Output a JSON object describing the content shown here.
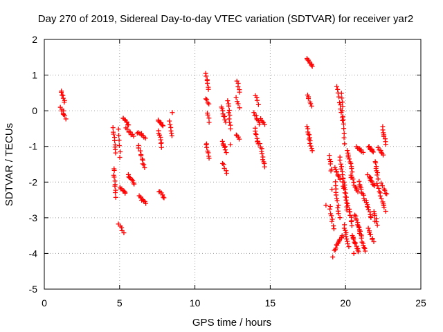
{
  "chart_data": {
    "type": "scatter",
    "title": "Day 270 of 2019, Sidereal Day-to-day VTEC variation (SDTVAR) for receiver yar2",
    "xlabel": "GPS time / hours",
    "ylabel": "SDTVAR / TECUs",
    "xlim": [
      0,
      25
    ],
    "ylim": [
      -5,
      2
    ],
    "xticks": [
      "0",
      "5",
      "10",
      "15",
      "20",
      "25"
    ],
    "yticks": [
      "2",
      "1",
      "0",
      "-1",
      "-2",
      "-3",
      "-4",
      "-5"
    ],
    "grid": true,
    "marker": "+",
    "color": "#ff0000",
    "tracks": [
      {
        "x0": 1.1,
        "y0": 0.55,
        "x1": 1.35,
        "y1": 0.25,
        "n": 7
      },
      {
        "x0": 1.1,
        "y0": 0.1,
        "x1": 1.4,
        "y1": -0.2,
        "n": 8
      },
      {
        "x0": 4.55,
        "y0": -0.5,
        "x1": 4.75,
        "y1": -1.2,
        "n": 9
      },
      {
        "x0": 4.6,
        "y0": -1.6,
        "x1": 4.75,
        "y1": -2.4,
        "n": 10
      },
      {
        "x0": 4.9,
        "y0": -0.5,
        "x1": 5.05,
        "y1": -1.3,
        "n": 6
      },
      {
        "x0": 5.0,
        "y0": -2.15,
        "x1": 5.4,
        "y1": -2.3,
        "n": 7
      },
      {
        "x0": 4.95,
        "y0": -3.2,
        "x1": 5.25,
        "y1": -3.4,
        "n": 5
      },
      {
        "x0": 5.2,
        "y0": -0.2,
        "x1": 5.6,
        "y1": -0.4,
        "n": 8
      },
      {
        "x0": 5.45,
        "y0": -0.5,
        "x1": 5.9,
        "y1": -0.7,
        "n": 8
      },
      {
        "x0": 5.55,
        "y0": -1.8,
        "x1": 5.95,
        "y1": -2.05,
        "n": 8
      },
      {
        "x0": 6.2,
        "y0": -0.6,
        "x1": 6.7,
        "y1": -0.75,
        "n": 8
      },
      {
        "x0": 6.25,
        "y0": -1.0,
        "x1": 6.65,
        "y1": -1.6,
        "n": 10
      },
      {
        "x0": 6.3,
        "y0": -2.4,
        "x1": 6.75,
        "y1": -2.6,
        "n": 8
      },
      {
        "x0": 7.55,
        "y0": -0.25,
        "x1": 7.9,
        "y1": -0.45,
        "n": 8
      },
      {
        "x0": 7.6,
        "y0": -0.55,
        "x1": 7.8,
        "y1": -1.0,
        "n": 8
      },
      {
        "x0": 7.6,
        "y0": -2.25,
        "x1": 7.95,
        "y1": -2.45,
        "n": 6
      },
      {
        "x0": 8.3,
        "y0": -0.3,
        "x1": 8.45,
        "y1": -0.7,
        "n": 6
      },
      {
        "x0": 10.75,
        "y0": 1.05,
        "x1": 10.9,
        "y1": 0.6,
        "n": 7
      },
      {
        "x0": 10.75,
        "y0": 0.35,
        "x1": 10.9,
        "y1": 0.2,
        "n": 4
      },
      {
        "x0": 10.85,
        "y0": -0.05,
        "x1": 10.95,
        "y1": -0.3,
        "n": 4
      },
      {
        "x0": 10.75,
        "y0": -0.9,
        "x1": 10.95,
        "y1": -1.35,
        "n": 7
      },
      {
        "x0": 11.75,
        "y0": 0.1,
        "x1": 12.05,
        "y1": -0.3,
        "n": 8
      },
      {
        "x0": 11.8,
        "y0": -0.85,
        "x1": 12.05,
        "y1": -1.15,
        "n": 7
      },
      {
        "x0": 11.85,
        "y0": -1.45,
        "x1": 12.1,
        "y1": -1.75,
        "n": 5
      },
      {
        "x0": 12.2,
        "y0": 0.3,
        "x1": 12.35,
        "y1": -0.5,
        "n": 10
      },
      {
        "x0": 12.8,
        "y0": 0.85,
        "x1": 12.95,
        "y1": 0.5,
        "n": 5
      },
      {
        "x0": 12.75,
        "y0": 0.35,
        "x1": 12.95,
        "y1": 0.1,
        "n": 4
      },
      {
        "x0": 12.75,
        "y0": -0.65,
        "x1": 12.95,
        "y1": -0.8,
        "n": 4
      },
      {
        "x0": 14.05,
        "y0": 0.45,
        "x1": 14.2,
        "y1": 0.2,
        "n": 4
      },
      {
        "x0": 13.95,
        "y0": -0.05,
        "x1": 14.3,
        "y1": -0.4,
        "n": 8
      },
      {
        "x0": 14.0,
        "y0": -0.5,
        "x1": 14.2,
        "y1": -0.95,
        "n": 8
      },
      {
        "x0": 14.4,
        "y0": -0.2,
        "x1": 14.6,
        "y1": -0.4,
        "n": 5
      },
      {
        "x0": 14.35,
        "y0": -0.95,
        "x1": 14.6,
        "y1": -1.55,
        "n": 10
      },
      {
        "x0": 17.45,
        "y0": 1.45,
        "x1": 17.8,
        "y1": 1.25,
        "n": 8
      },
      {
        "x0": 17.45,
        "y0": 0.45,
        "x1": 17.75,
        "y1": 0.15,
        "n": 6
      },
      {
        "x0": 17.45,
        "y0": -0.45,
        "x1": 17.75,
        "y1": -1.1,
        "n": 12
      },
      {
        "x0": 18.95,
        "y0": -1.25,
        "x1": 19.05,
        "y1": -1.7,
        "n": 6
      },
      {
        "x0": 18.95,
        "y0": -2.7,
        "x1": 19.2,
        "y1": -3.3,
        "n": 8
      },
      {
        "x0": 19.25,
        "y0": -3.9,
        "x1": 19.8,
        "y1": -3.5,
        "n": 12
      },
      {
        "x0": 19.3,
        "y0": -1.6,
        "x1": 19.6,
        "y1": -1.9,
        "n": 8
      },
      {
        "x0": 19.3,
        "y0": -2.0,
        "x1": 19.6,
        "y1": -3.0,
        "n": 12
      },
      {
        "x0": 19.45,
        "y0": 0.7,
        "x1": 19.8,
        "y1": -0.3,
        "n": 10
      },
      {
        "x0": 19.6,
        "y0": -1.3,
        "x1": 20.05,
        "y1": -2.4,
        "n": 14
      },
      {
        "x0": 19.75,
        "y0": 0.5,
        "x1": 19.9,
        "y1": -0.9,
        "n": 12
      },
      {
        "x0": 19.8,
        "y0": -1.9,
        "x1": 20.1,
        "y1": -2.8,
        "n": 10
      },
      {
        "x0": 19.9,
        "y0": -3.2,
        "x1": 20.2,
        "y1": -3.8,
        "n": 10
      },
      {
        "x0": 20.1,
        "y0": -1.1,
        "x1": 20.45,
        "y1": -1.7,
        "n": 10
      },
      {
        "x0": 20.15,
        "y0": -2.6,
        "x1": 20.45,
        "y1": -3.2,
        "n": 10
      },
      {
        "x0": 20.35,
        "y0": -1.8,
        "x1": 20.8,
        "y1": -2.3,
        "n": 12
      },
      {
        "x0": 20.45,
        "y0": -3.5,
        "x1": 20.85,
        "y1": -3.95,
        "n": 12
      },
      {
        "x0": 20.6,
        "y0": -2.9,
        "x1": 21.0,
        "y1": -3.4,
        "n": 10
      },
      {
        "x0": 20.75,
        "y0": -1.0,
        "x1": 21.15,
        "y1": -1.15,
        "n": 8
      },
      {
        "x0": 20.9,
        "y0": -2.0,
        "x1": 21.25,
        "y1": -2.5,
        "n": 10
      },
      {
        "x0": 20.9,
        "y0": -3.3,
        "x1": 21.3,
        "y1": -3.95,
        "n": 12
      },
      {
        "x0": 21.35,
        "y0": -2.5,
        "x1": 21.7,
        "y1": -3.0,
        "n": 10
      },
      {
        "x0": 21.5,
        "y0": -1.0,
        "x1": 21.85,
        "y1": -1.15,
        "n": 8
      },
      {
        "x0": 21.5,
        "y0": -1.8,
        "x1": 21.9,
        "y1": -2.1,
        "n": 10
      },
      {
        "x0": 21.5,
        "y0": -3.3,
        "x1": 21.85,
        "y1": -3.65,
        "n": 8
      },
      {
        "x0": 21.85,
        "y0": -2.8,
        "x1": 22.1,
        "y1": -3.2,
        "n": 6
      },
      {
        "x0": 21.95,
        "y0": -1.4,
        "x1": 22.15,
        "y1": -1.9,
        "n": 8
      },
      {
        "x0": 22.05,
        "y0": -2.05,
        "x1": 22.65,
        "y1": -2.8,
        "n": 12
      },
      {
        "x0": 22.2,
        "y0": -1.05,
        "x1": 22.5,
        "y1": -1.25,
        "n": 6
      },
      {
        "x0": 22.45,
        "y0": -0.45,
        "x1": 22.65,
        "y1": -0.95,
        "n": 8
      },
      {
        "x0": 22.4,
        "y0": -2.05,
        "x1": 22.7,
        "y1": -2.35,
        "n": 6
      }
    ],
    "points": [
      {
        "x": 8.5,
        "y": -0.05
      },
      {
        "x": 12.0,
        "y": -1.0
      },
      {
        "x": 12.35,
        "y": -0.95
      },
      {
        "x": 19.1,
        "y": -2.2
      },
      {
        "x": 18.7,
        "y": -2.65
      },
      {
        "x": 20.55,
        "y": -4.0
      },
      {
        "x": 21.95,
        "y": -3.1
      },
      {
        "x": 19.15,
        "y": -4.1
      }
    ]
  }
}
